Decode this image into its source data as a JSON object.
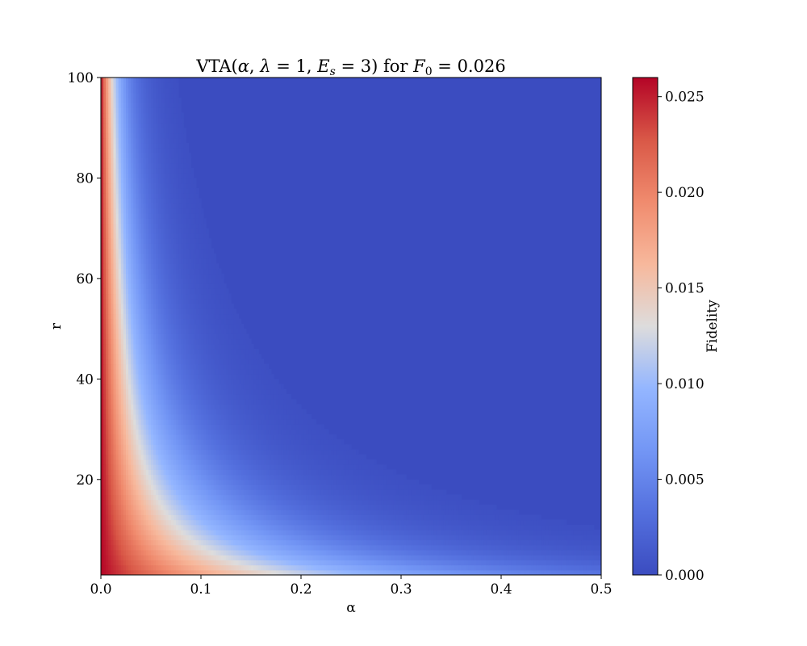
{
  "chart_data": {
    "type": "heatmap",
    "title": {
      "prefix": "VTA(",
      "alpha": "α",
      "sep1": ", ",
      "lambda": "λ",
      "eq": " = ",
      "lambda_val": "1",
      "sep2": ", ",
      "E": "E",
      "E_sub": "s",
      "E_val": "3",
      "suffix": ") for ",
      "F": "F",
      "F_sub": "0",
      "F_val": "0.026"
    },
    "xlabel": "α",
    "ylabel": "r",
    "xlim": [
      0.0,
      0.5
    ],
    "ylim": [
      1,
      100
    ],
    "xticks": [
      0.0,
      0.1,
      0.2,
      0.3,
      0.4,
      0.5
    ],
    "xtick_labels": [
      "0.0",
      "0.1",
      "0.2",
      "0.3",
      "0.4",
      "0.5"
    ],
    "yticks": [
      20,
      40,
      60,
      80,
      100
    ],
    "ytick_labels": [
      "20",
      "40",
      "60",
      "80",
      "100"
    ],
    "colormap": "coolwarm",
    "colorbar": {
      "label": "Fidelity",
      "range": [
        0.0,
        0.026
      ],
      "ticks": [
        0.0,
        0.005,
        0.01,
        0.015,
        0.02,
        0.025
      ],
      "tick_labels": [
        "0.000",
        "0.005",
        "0.010",
        "0.015",
        "0.020",
        "0.025"
      ]
    },
    "description_values": {
      "peak_fidelity": 0.026,
      "background_fidelity": 0.0
    }
  }
}
